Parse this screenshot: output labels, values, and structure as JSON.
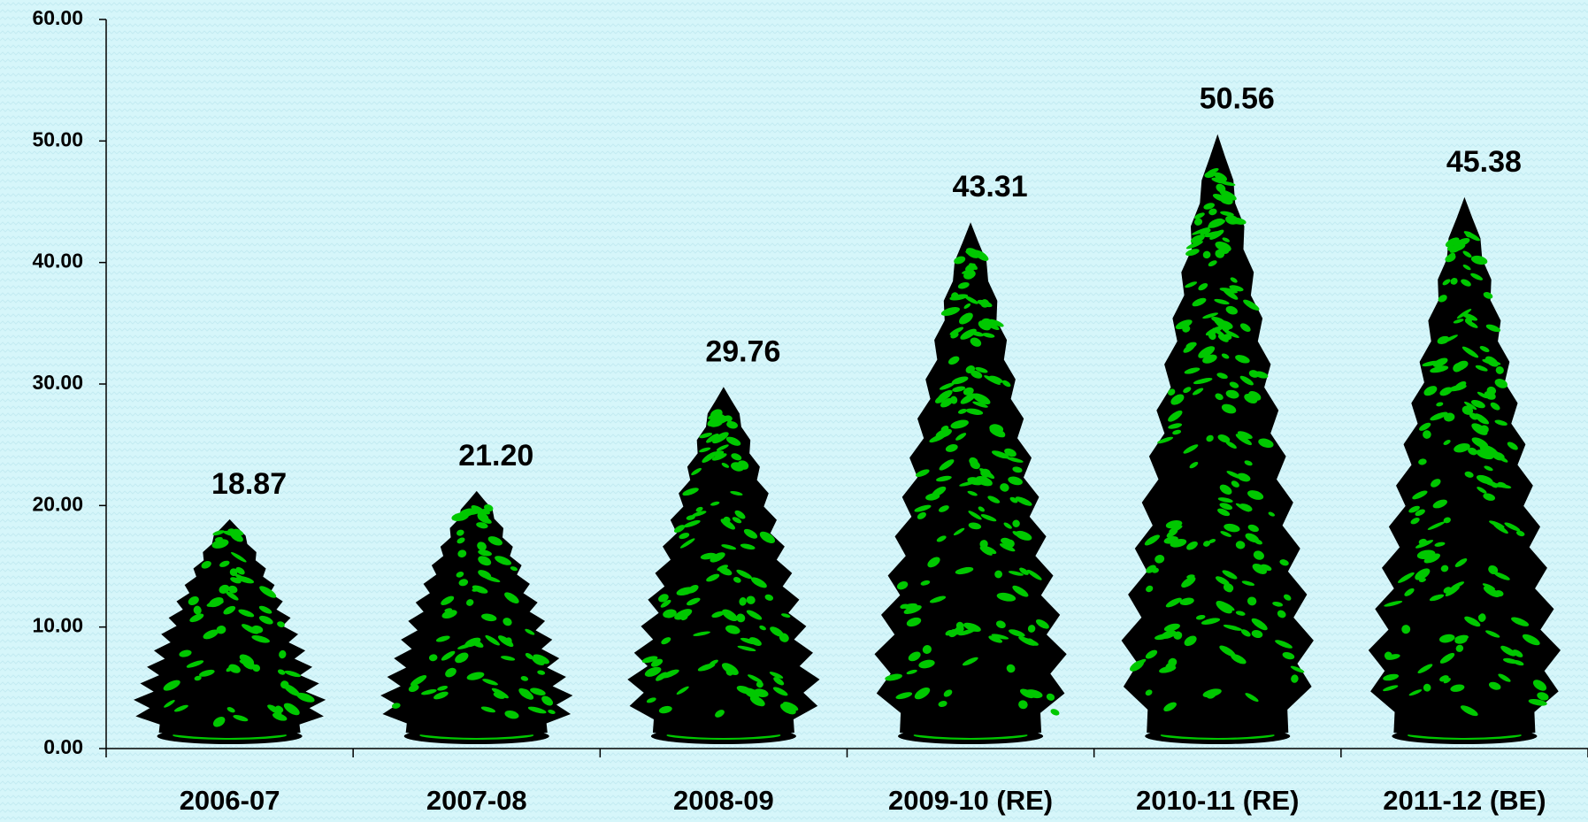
{
  "chart_data": {
    "type": "bar",
    "categories": [
      "2006-07",
      "2007-08",
      "2008-09",
      "2009-10 (RE)",
      "2010-11 (RE)",
      "2011-12 (BE)"
    ],
    "values": [
      18.87,
      21.2,
      29.76,
      43.31,
      50.56,
      45.38
    ],
    "value_labels": [
      "18.87",
      "21.20",
      "29.76",
      "43.31",
      "50.56",
      "45.38"
    ],
    "color": "#00c800",
    "ylim": [
      0,
      60
    ],
    "yticks": [
      {
        "value": 0,
        "label": "0.00"
      },
      {
        "value": 10,
        "label": "10.00"
      },
      {
        "value": 20,
        "label": "20.00"
      },
      {
        "value": 30,
        "label": "30.00"
      },
      {
        "value": 40,
        "label": "40.00"
      },
      {
        "value": 50,
        "label": "50.00"
      },
      {
        "value": 60,
        "label": "60.00"
      }
    ]
  }
}
